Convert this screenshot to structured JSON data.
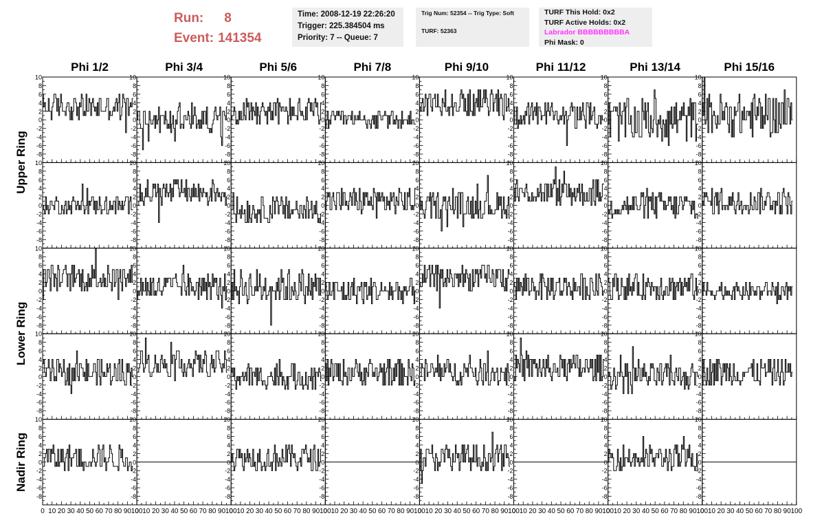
{
  "run": {
    "run_label": "Run:",
    "run_value": "8",
    "event_label": "Event:",
    "event_value": "141354"
  },
  "info_time": {
    "time": "Time: 2008-12-19 22:26:20",
    "trigger": "Trigger: 225.384504 ms",
    "priority": "Priority: 7 -- Queue: 7"
  },
  "info_trig": {
    "trig": "Trig Num: 52354 -- Trig Type: Soft",
    "turf": "TURF: 52363"
  },
  "info_turf": {
    "this_hold": "TURF This Hold: 0x2",
    "active_holds": "TURF Active Holds: 0x2",
    "labrador": "Labrador BBBBBBBBBA",
    "phi_mask": "Phi Mask: 0"
  },
  "colors": {
    "run_text": "#cc5b5b",
    "labrador": "#ff33ff",
    "info_bg": "#eeeeee",
    "trace": "#000000"
  },
  "chart_data": {
    "type": "line",
    "columns": [
      "Phi 1/2",
      "Phi 3/4",
      "Phi 5/6",
      "Phi 7/8",
      "Phi 9/10",
      "Phi 11/12",
      "Phi 13/14",
      "Phi 15/16"
    ],
    "ring_labels": [
      {
        "name": "Upper Ring",
        "rows": [
          0,
          1
        ]
      },
      {
        "name": "Lower Ring",
        "rows": [
          2,
          3
        ]
      },
      {
        "name": "Nadir Ring",
        "rows": [
          4
        ]
      }
    ],
    "xlim": [
      0,
      100
    ],
    "ylim": [
      -10,
      10
    ],
    "x_tick_labels": [
      "0",
      "10",
      "20",
      "30",
      "40",
      "50",
      "60",
      "70",
      "80",
      "90",
      "100"
    ],
    "y_tick_labels": [
      "-8",
      "-6",
      "-4",
      "-2",
      "0",
      "2",
      "4",
      "6",
      "8",
      "10"
    ],
    "samples_per_trace": 96,
    "grid": false,
    "panels_baseline": [
      [
        3,
        0,
        2,
        0,
        4,
        1,
        0,
        1
      ],
      [
        0,
        3,
        -1,
        1,
        0,
        3,
        0,
        1
      ],
      [
        3,
        1,
        1,
        0,
        3,
        1,
        1,
        0
      ],
      [
        1,
        3,
        0,
        1,
        1,
        2,
        0,
        1
      ],
      [
        1,
        null,
        1,
        null,
        1,
        null,
        1,
        null
      ]
    ],
    "panels_amplitude": [
      [
        3,
        3,
        3,
        2,
        3,
        3,
        5,
        5
      ],
      [
        2,
        3,
        3,
        3,
        3,
        3,
        3,
        3
      ],
      [
        3,
        3,
        4,
        3,
        3,
        3,
        3,
        2
      ],
      [
        3,
        3,
        3,
        3,
        3,
        3,
        3,
        3
      ],
      [
        3,
        0,
        3,
        0,
        3,
        0,
        3,
        0
      ]
    ]
  }
}
